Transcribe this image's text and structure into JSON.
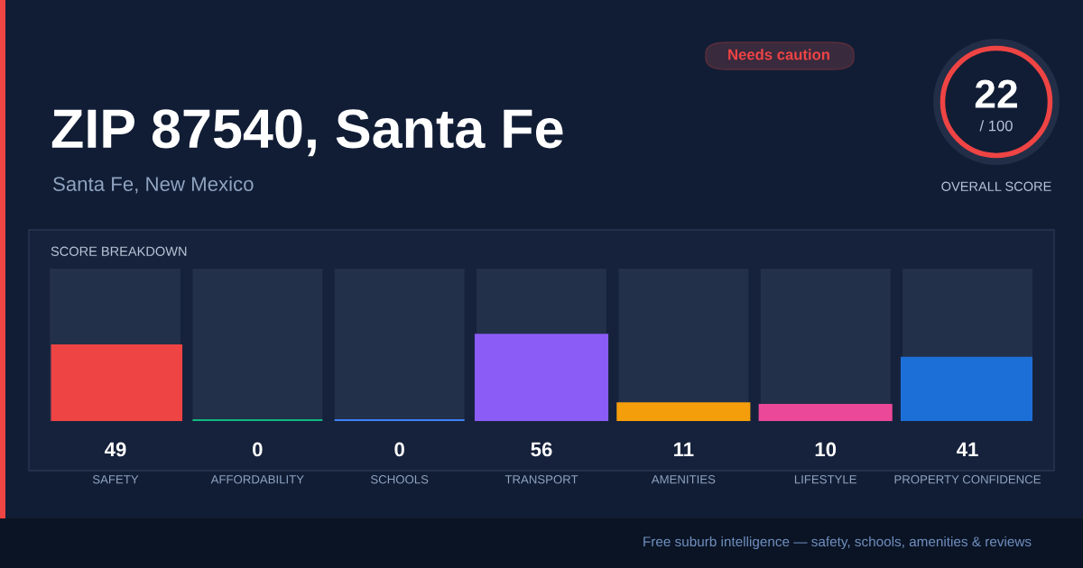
{
  "chart_data": {
    "type": "bar",
    "title": "ZIP 87540, Santa Fe",
    "subtitle": "Santa Fe, New Mexico",
    "categories": [
      "SAFETY",
      "AFFORDABILITY",
      "SCHOOLS",
      "TRANSPORT",
      "AMENITIES",
      "LIFESTYLE",
      "PROPERTY CONFIDENCE"
    ],
    "values": [
      49,
      0,
      0,
      56,
      11,
      10,
      41
    ],
    "colors": [
      "#ef4444",
      "#10b981",
      "#3b82f6",
      "#8b5cf6",
      "#f59e0b",
      "#ec4899",
      "#1d6fd8"
    ],
    "ylim": [
      0,
      100
    ],
    "tick_labels": "x",
    "data_labels": true,
    "annotations": [
      "Needs caution",
      "22",
      "/ 100",
      "OVERALL SCORE",
      "SCORE BREAKDOWN",
      "Free suburb intelligence — safety, schools, amenities & reviews"
    ]
  }
}
